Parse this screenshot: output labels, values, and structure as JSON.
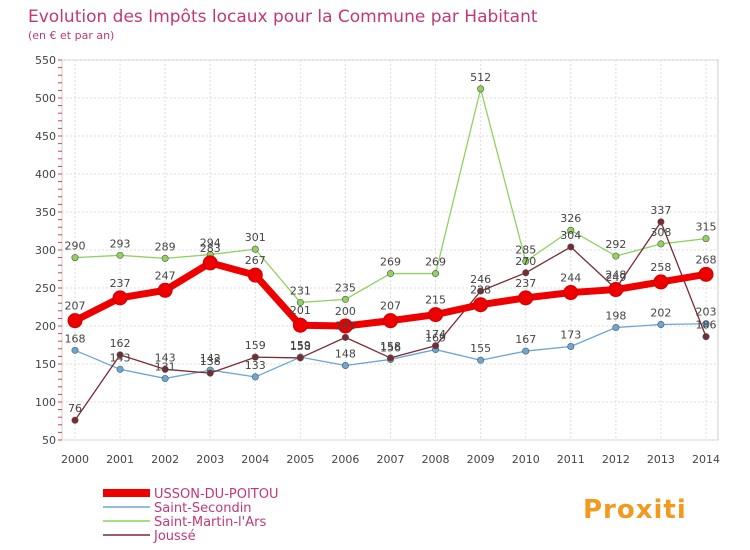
{
  "chart_data": {
    "type": "line",
    "title": "Evolution des Impôts locaux pour la Commune par Habitant",
    "subtitle": "(en € et par an)",
    "xlabel": "",
    "ylabel": "",
    "ylim": [
      50,
      550
    ],
    "yticks": [
      "50",
      "100",
      "150",
      "200",
      "250",
      "300",
      "350",
      "400",
      "450",
      "500",
      "550"
    ],
    "categories": [
      "2000",
      "2001",
      "2002",
      "2003",
      "2004",
      "2005",
      "2006",
      "2007",
      "2008",
      "2009",
      "2010",
      "2011",
      "2012",
      "2013",
      "2014"
    ],
    "series": [
      {
        "name": "USSON-DU-POITOU",
        "color": "#ee0000",
        "values": [
          207,
          237,
          247,
          283,
          267,
          201,
          200,
          207,
          215,
          228,
          237,
          244,
          248,
          258,
          268
        ]
      },
      {
        "name": "Saint-Secondin",
        "color": "#6aa6d6",
        "values": [
          168,
          143,
          131,
          142,
          133,
          159,
          148,
          156,
          169,
          155,
          167,
          173,
          198,
          202,
          203
        ]
      },
      {
        "name": "Saint-Martin-l'Ars",
        "color": "#8fd260",
        "values": [
          290,
          293,
          289,
          294,
          301,
          231,
          235,
          269,
          269,
          512,
          285,
          326,
          292,
          308,
          315
        ]
      },
      {
        "name": "Joussé",
        "color": "#7a2a32",
        "values": [
          76,
          162,
          143,
          138,
          159,
          158,
          185,
          158,
          174,
          246,
          270,
          304,
          249,
          337,
          186
        ]
      }
    ],
    "legend_position": "bottom-left",
    "grid": true
  },
  "branding": {
    "logo_text": "Proxiti"
  }
}
